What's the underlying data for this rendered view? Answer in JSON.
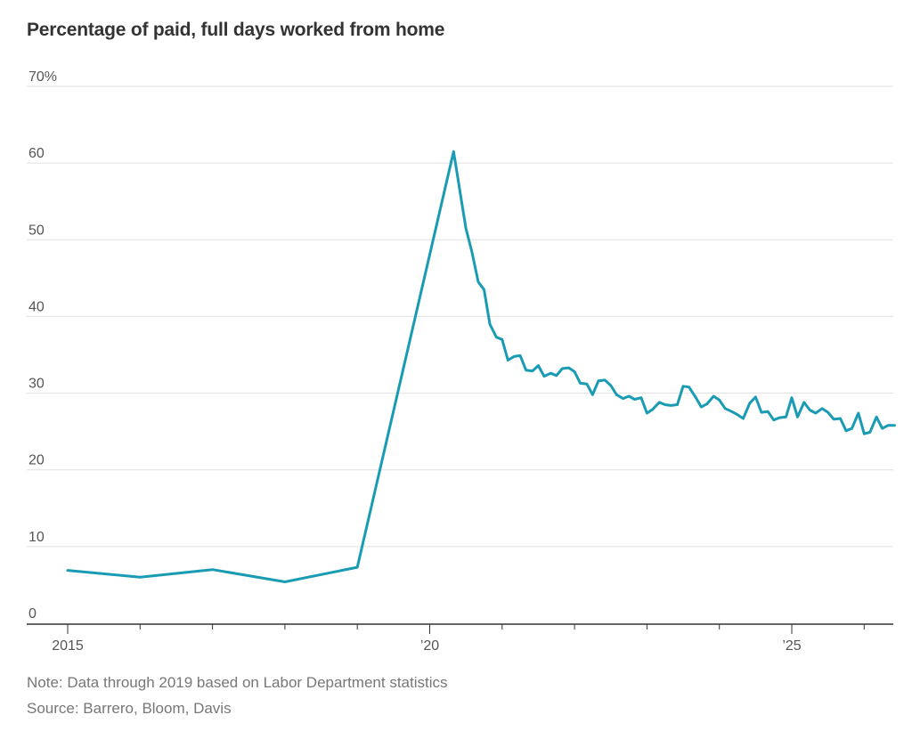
{
  "title": "Percentage of paid, full days worked from home",
  "note": "Note: Data through 2019 based on Labor Department statistics",
  "source": "Source: Barrero, Bloom, Davis",
  "colors": {
    "line": "#1a9bb4",
    "grid": "#e0e0e0",
    "axis": "#333333"
  },
  "chart_data": {
    "type": "line",
    "title": "Percentage of paid, full days worked from home",
    "xlabel": "",
    "ylabel": "",
    "ylim": [
      0,
      70
    ],
    "xlim": [
      2015,
      2026.5
    ],
    "grid": true,
    "y_ticks": [
      {
        "value": 70,
        "label": "70%"
      },
      {
        "value": 60,
        "label": "60"
      },
      {
        "value": 50,
        "label": "50"
      },
      {
        "value": 40,
        "label": "40"
      },
      {
        "value": 30,
        "label": "30"
      },
      {
        "value": 20,
        "label": "20"
      },
      {
        "value": 10,
        "label": "10"
      },
      {
        "value": 0,
        "label": "0"
      }
    ],
    "x_ticks": [
      {
        "value": 2015,
        "label": "2015"
      },
      {
        "value": 2016,
        "label": ""
      },
      {
        "value": 2017,
        "label": ""
      },
      {
        "value": 2018,
        "label": ""
      },
      {
        "value": 2019,
        "label": ""
      },
      {
        "value": 2020,
        "label": "’20"
      },
      {
        "value": 2021,
        "label": ""
      },
      {
        "value": 2022,
        "label": ""
      },
      {
        "value": 2023,
        "label": ""
      },
      {
        "value": 2024,
        "label": ""
      },
      {
        "value": 2025,
        "label": "’25"
      },
      {
        "value": 2026,
        "label": ""
      }
    ],
    "series": [
      {
        "x": [
          2015.0,
          2016.0,
          2017.0,
          2018.0,
          2019.0,
          2020.33,
          2020.5,
          2020.58,
          2020.67,
          2020.75,
          2020.83,
          2020.92,
          2021.0,
          2021.08,
          2021.17,
          2021.25,
          2021.33,
          2021.42,
          2021.5,
          2021.58,
          2021.67,
          2021.75,
          2021.83,
          2021.92,
          2022.0,
          2022.08,
          2022.17,
          2022.25,
          2022.33,
          2022.42,
          2022.5,
          2022.58,
          2022.67,
          2022.75,
          2022.83,
          2022.92,
          2023.0,
          2023.08,
          2023.17,
          2023.25,
          2023.33,
          2023.42,
          2023.5,
          2023.58,
          2023.67,
          2023.75,
          2023.83,
          2023.92,
          2024.0,
          2024.08,
          2024.17,
          2024.25,
          2024.33,
          2024.42,
          2024.5,
          2024.58,
          2024.67,
          2024.75,
          2024.83,
          2024.92,
          2025.0,
          2025.08,
          2025.17,
          2025.25,
          2025.33,
          2025.42,
          2025.5,
          2025.58,
          2025.67,
          2025.75,
          2025.83,
          2025.92,
          2026.0,
          2026.08,
          2026.17,
          2026.25,
          2026.33,
          2026.42
        ],
        "values": [
          6.9,
          6.0,
          7.0,
          5.4,
          7.3,
          61.5,
          51.5,
          48.5,
          44.5,
          43.5,
          39.0,
          37.3,
          37.0,
          34.3,
          34.8,
          34.9,
          33.0,
          32.9,
          33.6,
          32.2,
          32.6,
          32.3,
          33.2,
          33.3,
          32.8,
          31.3,
          31.2,
          29.8,
          31.6,
          31.7,
          31.0,
          29.8,
          29.3,
          29.6,
          29.2,
          29.4,
          27.4,
          27.9,
          28.8,
          28.5,
          28.4,
          28.5,
          30.9,
          30.8,
          29.5,
          28.2,
          28.6,
          29.6,
          29.1,
          28.0,
          27.6,
          27.2,
          26.7,
          28.7,
          29.5,
          27.5,
          27.6,
          26.5,
          26.8,
          26.9,
          29.4,
          26.9,
          28.8,
          27.8,
          27.4,
          28.0,
          27.5,
          26.6,
          26.7,
          25.1,
          25.4,
          27.4,
          24.7,
          24.9,
          26.9,
          25.4,
          25.8,
          25.8
        ]
      }
    ]
  }
}
